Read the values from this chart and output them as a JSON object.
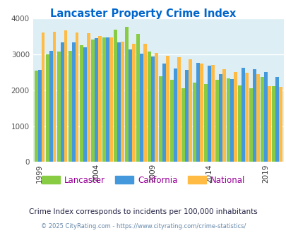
{
  "title": "Lancaster Property Crime Index",
  "title_color": "#0066cc",
  "subtitle": "Crime Index corresponds to incidents per 100,000 inhabitants",
  "footer": "© 2025 CityRating.com - https://www.cityrating.com/crime-statistics/",
  "years": [
    1999,
    2000,
    2001,
    2002,
    2003,
    2004,
    2005,
    2006,
    2007,
    2008,
    2009,
    2010,
    2011,
    2012,
    2013,
    2014,
    2015,
    2016,
    2017,
    2018,
    2019,
    2020
  ],
  "lancaster": [
    2550,
    3010,
    3080,
    3100,
    3250,
    3420,
    3480,
    3700,
    3780,
    3570,
    3080,
    2390,
    2290,
    2050,
    2220,
    2180,
    2290,
    2330,
    2140,
    2060,
    2380,
    2110
  ],
  "california": [
    2560,
    3100,
    3330,
    3330,
    3200,
    3450,
    3480,
    3330,
    3150,
    3030,
    2950,
    2740,
    2600,
    2560,
    2770,
    2680,
    2450,
    2320,
    2620,
    2580,
    2510,
    2380
  ],
  "national": [
    3620,
    3640,
    3670,
    3620,
    3600,
    3520,
    3470,
    3350,
    3300,
    3290,
    3040,
    2960,
    2920,
    2870,
    2740,
    2700,
    2590,
    2510,
    2490,
    2450,
    2110,
    2090
  ],
  "lancaster_color": "#88cc44",
  "california_color": "#4499dd",
  "national_color": "#ffbb44",
  "bg_color": "#ddeef5",
  "ylim": [
    0,
    4000
  ],
  "yticks": [
    0,
    1000,
    2000,
    3000,
    4000
  ],
  "xtick_years": [
    1999,
    2004,
    2009,
    2014,
    2019
  ],
  "grid_color": "#ffffff",
  "legend_labels": [
    "Lancaster",
    "California",
    "National"
  ],
  "legend_text_color": "#990099",
  "subtitle_color": "#222244",
  "footer_color": "#6688aa"
}
